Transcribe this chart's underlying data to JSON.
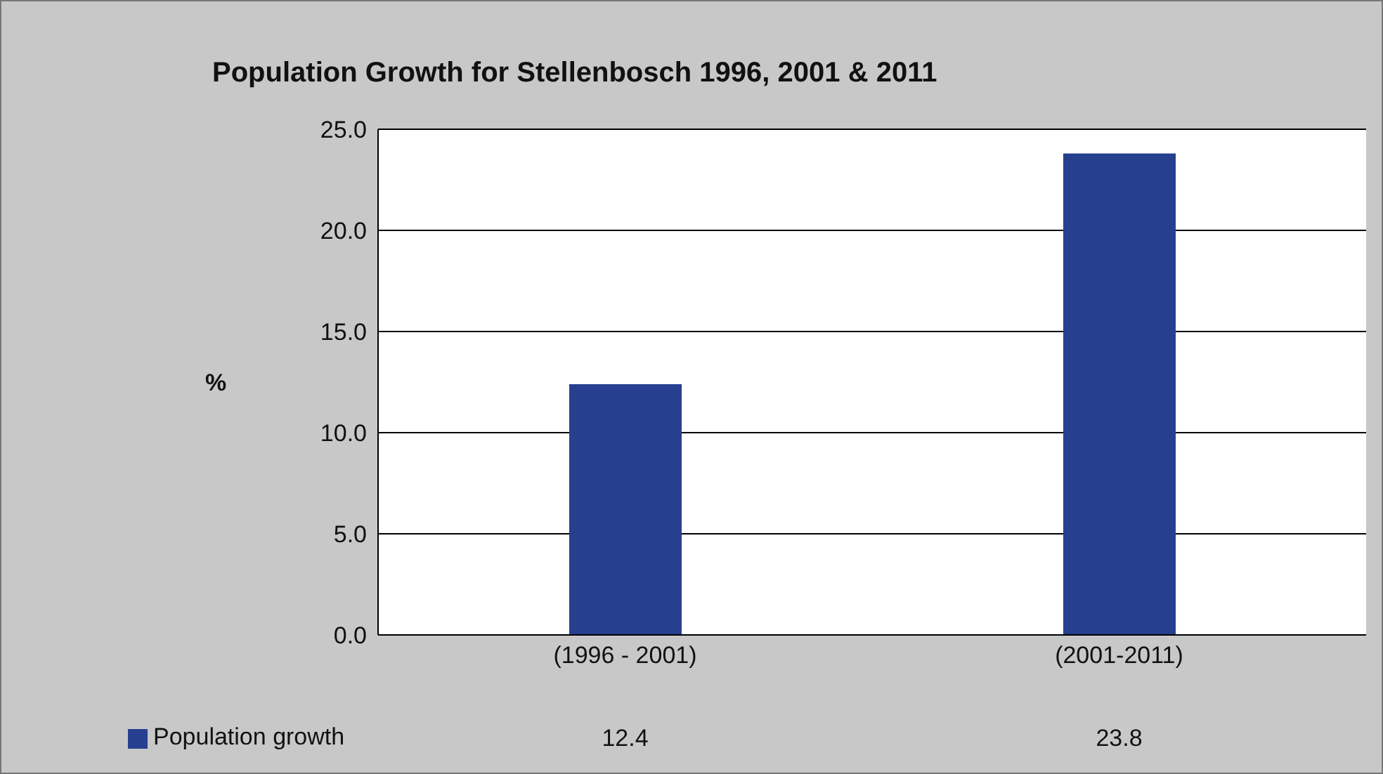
{
  "chart_data": {
    "type": "bar",
    "title": "Population Growth for Stellenbosch 1996, 2001 & 2011",
    "ylabel": "%",
    "categories": [
      "(1996 - 2001)",
      "(2001-2011)"
    ],
    "series": [
      {
        "name": "Population growth",
        "color": "#263f8f",
        "values": [
          12.4,
          23.8
        ]
      }
    ],
    "ylim": [
      0,
      25
    ],
    "yticks": [
      {
        "value": 0,
        "label": "0.0"
      },
      {
        "value": 5,
        "label": "5.0"
      },
      {
        "value": 10,
        "label": "10.0"
      },
      {
        "value": 15,
        "label": "15.0"
      },
      {
        "value": 20,
        "label": "20.0"
      },
      {
        "value": 25,
        "label": "25.0"
      }
    ],
    "grid": "y",
    "legend": "bottom left",
    "data_labels": true
  }
}
